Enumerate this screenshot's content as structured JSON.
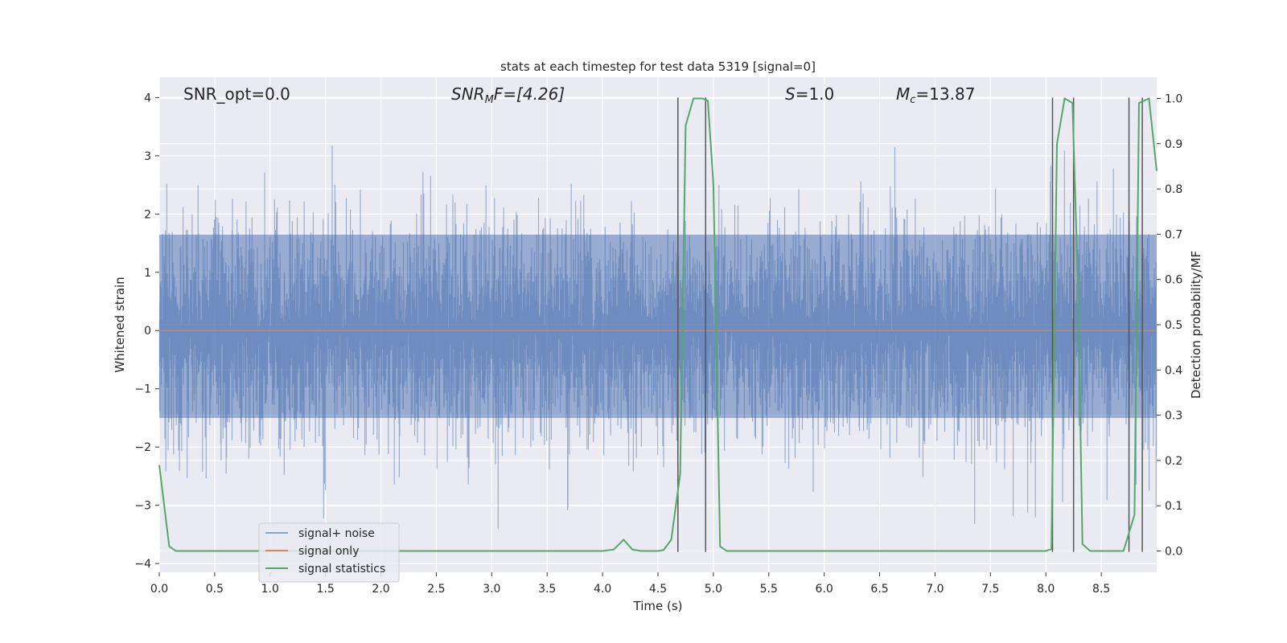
{
  "chart_data": {
    "type": "line",
    "title": "stats at each timestep for test data 5319 [signal=0]",
    "xlabel": "Time (s)",
    "ylabel_left": "Whitened strain",
    "ylabel_right": "Detection probability/MF",
    "xlim": [
      0.0,
      9.0
    ],
    "ylim_left": [
      -4.15,
      4.35
    ],
    "ylim_right": [
      -0.047,
      1.047
    ],
    "x_ticks": [
      "0.0",
      "0.5",
      "1.0",
      "1.5",
      "2.0",
      "2.5",
      "3.0",
      "3.5",
      "4.0",
      "4.5",
      "5.0",
      "5.5",
      "6.0",
      "6.5",
      "7.0",
      "7.5",
      "8.0",
      "8.5"
    ],
    "y_ticks_left": [
      "4",
      "3",
      "2",
      "1",
      "0",
      "−1",
      "−2",
      "−3",
      "−4"
    ],
    "y_ticks_right": [
      "1.0",
      "0.9",
      "0.8",
      "0.7",
      "0.6",
      "0.5",
      "0.4",
      "0.3",
      "0.2",
      "0.1",
      "0.0"
    ],
    "grid": true,
    "legend_position": "lower-left",
    "annotations": {
      "snr_opt": "SNR_opt=0.0",
      "snr_mf_base": "SNR",
      "snr_mf_sub": "M",
      "snr_mf_rest": "F=[4.26]",
      "s_var": "S",
      "s_val": "=1.0",
      "mc_base": "M",
      "mc_sub": "c",
      "mc_val": "=13.87"
    },
    "series": [
      {
        "name": "signal+ noise",
        "color": "#4c72b0",
        "kind": "noise",
        "mean": 0.0,
        "std": 1.0,
        "typical_range": [
          -1.5,
          1.65
        ]
      },
      {
        "name": "signal only",
        "color": "#dd8452",
        "x": [
          0.0,
          9.0
        ],
        "y": [
          0.0,
          0.0
        ]
      },
      {
        "name": "signal statistics",
        "color": "#55a868",
        "axis": "right",
        "x": [
          0.0,
          0.09,
          0.15,
          0.5,
          1.0,
          2.0,
          3.0,
          4.0,
          4.1,
          4.19,
          4.27,
          4.35,
          4.5,
          4.55,
          4.62,
          4.7,
          4.75,
          4.82,
          4.9,
          4.95,
          5.0,
          5.06,
          5.12,
          6.0,
          7.0,
          8.0,
          8.05,
          8.1,
          8.17,
          8.24,
          8.29,
          8.33,
          8.4,
          8.7,
          8.8,
          8.84,
          8.93,
          9.0
        ],
        "y": [
          0.19,
          0.01,
          0.0,
          0.0,
          0.0,
          0.0,
          0.0,
          0.0,
          0.003,
          0.025,
          0.003,
          0.0,
          0.0,
          0.002,
          0.025,
          0.17,
          0.94,
          1.0,
          1.0,
          0.995,
          0.81,
          0.01,
          0.0,
          0.0,
          0.0,
          0.0,
          0.004,
          0.9,
          1.0,
          0.99,
          0.58,
          0.015,
          0.0,
          0.0,
          0.08,
          0.99,
          1.0,
          0.84
        ]
      }
    ],
    "vertical_lines": {
      "color": "#555555",
      "x": [
        4.68,
        4.93,
        8.06,
        8.25,
        8.75,
        8.87
      ],
      "y_range_left": [
        -3.8,
        4.0
      ]
    }
  }
}
